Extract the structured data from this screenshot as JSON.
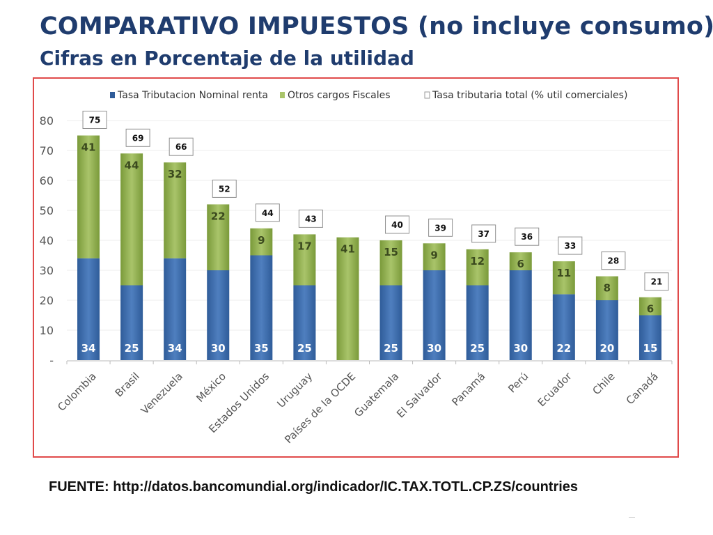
{
  "page": {
    "title": "COMPARATIVO IMPUESTOS (no incluye consumo)",
    "subtitle": "Cifras en Porcentaje de la utilidad",
    "source": "FUENTE: http://datos.bancomundial.org/indicador/IC.TAX.TOTL.CP.ZS/countries"
  },
  "colors": {
    "nominal": "#2f5c99",
    "nominal_light": "#4f7fbf",
    "otros": "#7a9a3a",
    "otros_light": "#a9c46a",
    "frame": "#e04a4a",
    "title": "#1f3c6e"
  },
  "chart_data": {
    "type": "bar",
    "stacked": true,
    "categories": [
      "Colombia",
      "Brasil",
      "Venezuela",
      "México",
      "Estados Unidos",
      "Uruguay",
      "Países de la OCDE",
      "Guatemala",
      "El Salvador",
      "Panamá",
      "Perú",
      "Ecuador",
      "Chile",
      "Canadá"
    ],
    "series": [
      {
        "name": "Tasa Tributacion Nominal renta",
        "values": [
          34,
          25,
          34,
          30,
          35,
          25,
          null,
          25,
          30,
          25,
          30,
          22,
          20,
          15
        ]
      },
      {
        "name": "Otros cargos Fiscales",
        "values": [
          41,
          44,
          32,
          22,
          9,
          17,
          41,
          15,
          9,
          12,
          6,
          11,
          8,
          6
        ]
      }
    ],
    "totals": {
      "name": "Tasa tributaria total (% util comerciales)",
      "values": [
        75,
        69,
        66,
        52,
        44,
        43,
        null,
        40,
        39,
        37,
        36,
        33,
        28,
        21
      ]
    },
    "y_ticks": [
      "-",
      "10",
      "20",
      "30",
      "40",
      "50",
      "60",
      "70",
      "80"
    ],
    "ylim": [
      0,
      80
    ],
    "legend_position": "top",
    "grid": true
  }
}
